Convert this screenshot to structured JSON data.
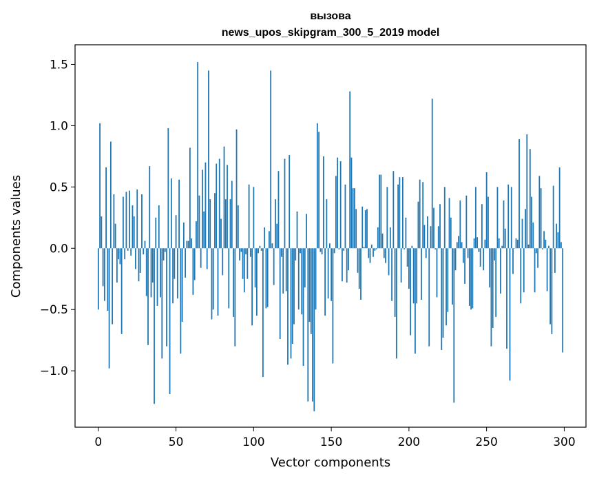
{
  "chart_data": {
    "type": "bar",
    "title_line1": "вызова",
    "title_line2": "news_upos_skipgram_300_5_2019 model",
    "xlabel": "Vector components",
    "ylabel": "Components values",
    "xlim": [
      -15,
      314
    ],
    "ylim": [
      -1.46,
      1.66
    ],
    "xticks": [
      0,
      50,
      100,
      150,
      200,
      250,
      300
    ],
    "yticks": [
      1.5,
      1.0,
      0.5,
      0.0,
      -0.5,
      -1.0
    ],
    "ytick_labels": [
      "1.5",
      "1.0",
      "0.5",
      "0.0",
      "−0.5",
      "−1.0"
    ],
    "bar_color": "#1f77b4",
    "grid": false,
    "values": [
      -0.5,
      1.02,
      0.26,
      -0.31,
      -0.43,
      0.66,
      -0.51,
      -0.98,
      0.87,
      -0.62,
      0.44,
      0.2,
      -0.28,
      -0.09,
      -0.13,
      -0.7,
      0.42,
      -0.09,
      0.46,
      -0.02,
      0.47,
      -0.06,
      0.35,
      0.26,
      -0.17,
      0.48,
      -0.27,
      -0.2,
      0.44,
      -0.05,
      0.06,
      -0.39,
      -0.79,
      0.67,
      -0.4,
      -0.28,
      -1.27,
      0.25,
      -0.47,
      0.35,
      -0.4,
      -0.9,
      -0.1,
      -0.03,
      -0.8,
      0.98,
      -1.19,
      0.57,
      -0.45,
      -0.25,
      0.27,
      -0.41,
      0.56,
      -0.86,
      -0.6,
      0.21,
      -0.24,
      0.06,
      0.06,
      0.82,
      0.08,
      -0.38,
      -0.26,
      0.22,
      1.52,
      0.43,
      -0.16,
      0.64,
      0.3,
      0.7,
      -0.17,
      1.45,
      0.4,
      -0.58,
      -0.5,
      0.45,
      0.69,
      -0.55,
      0.73,
      0.24,
      -0.22,
      0.83,
      0.4,
      0.68,
      -0.49,
      0.4,
      0.55,
      -0.56,
      -0.8,
      0.97,
      0.35,
      -0.1,
      -0.03,
      -0.25,
      -0.36,
      -0.05,
      -0.25,
      0.52,
      -0.07,
      -0.63,
      0.5,
      -0.32,
      -0.55,
      -0.04,
      0.02,
      -0.02,
      -1.05,
      0.17,
      -0.49,
      -0.48,
      0.14,
      1.45,
      0.04,
      -0.3,
      0.4,
      0.2,
      0.63,
      -0.74,
      -0.07,
      -0.37,
      0.73,
      -0.35,
      -0.95,
      0.76,
      -0.9,
      -0.78,
      -0.62,
      -0.1,
      0.3,
      -0.5,
      -0.04,
      -0.54,
      -0.96,
      -0.32,
      0.28,
      -1.25,
      -0.6,
      -0.7,
      -1.25,
      -1.33,
      -0.5,
      1.02,
      0.95,
      -0.03,
      -0.05,
      0.75,
      -0.55,
      0.4,
      -0.41,
      0.04,
      -0.43,
      -0.94,
      -0.04,
      0.59,
      0.74,
      -0.01,
      0.71,
      -0.27,
      -0.02,
      0.52,
      -0.28,
      -0.18,
      1.28,
      0.74,
      0.49,
      0.49,
      0.32,
      -0.2,
      -0.33,
      -0.42,
      0.34,
      0.01,
      0.31,
      0.32,
      -0.08,
      -0.12,
      0.03,
      -0.07,
      -0.02,
      -0.01,
      0.17,
      0.6,
      0.6,
      0.12,
      -0.08,
      -0.12,
      0.5,
      -0.22,
      0.17,
      -0.43,
      0.63,
      -0.56,
      -0.9,
      0.52,
      0.58,
      -0.28,
      0.58,
      -0.01,
      0.25,
      -0.15,
      -0.33,
      -0.71,
      0.02,
      -0.45,
      -0.86,
      -0.45,
      0.38,
      0.56,
      -0.42,
      0.54,
      0.19,
      -0.08,
      0.26,
      -0.8,
      0.18,
      1.22,
      0.33,
      -0.01,
      -0.4,
      0.18,
      0.36,
      -0.83,
      -0.73,
      0.5,
      -0.63,
      -0.52,
      0.41,
      0.25,
      -0.46,
      -1.26,
      -0.18,
      0.05,
      0.1,
      0.39,
      0.05,
      -0.12,
      -0.29,
      0.43,
      -0.08,
      -0.47,
      -0.5,
      -0.49,
      0.08,
      0.5,
      0.09,
      -0.03,
      -0.15,
      0.36,
      -0.18,
      0.07,
      0.62,
      0.42,
      -0.32,
      -0.8,
      -0.65,
      -0.1,
      -0.56,
      0.5,
      0.08,
      -0.37,
      0.02,
      0.39,
      0.16,
      -0.82,
      0.52,
      -1.08,
      0.5,
      -0.21,
      0.0,
      0.08,
      0.07,
      0.89,
      -0.45,
      0.24,
      -0.36,
      0.32,
      0.93,
      0.03,
      0.81,
      0.42,
      0.21,
      -0.36,
      -0.04,
      -0.16,
      0.59,
      0.49,
      -0.01,
      0.14,
      0.07,
      -0.35,
      0.02,
      -0.62,
      -0.7,
      0.51,
      -0.2,
      0.2,
      0.13,
      0.66,
      0.05,
      -0.85
    ]
  }
}
